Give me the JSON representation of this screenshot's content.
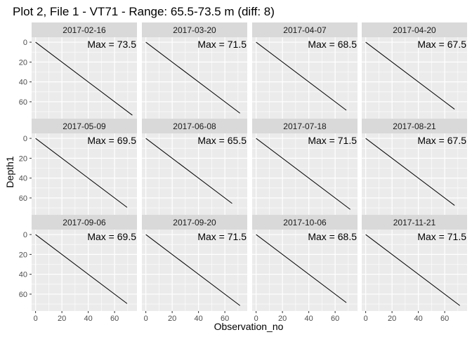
{
  "chart_data": {
    "type": "line",
    "title": "Plot 2, File 1 - VT71 - Range: 65.5-73.5 m (diff: 8)",
    "xlabel": "Observation_no",
    "ylabel": "Depth1",
    "xlim": [
      -3,
      77
    ],
    "ylim": [
      -5,
      77
    ],
    "y_reversed": true,
    "x_ticks": [
      0,
      20,
      40,
      60
    ],
    "y_ticks": [
      0,
      20,
      40,
      60
    ],
    "grid": true,
    "annotation_prefix": "Max = ",
    "facets": [
      {
        "label": "2017-02-16",
        "max": 73.5
      },
      {
        "label": "2017-03-20",
        "max": 71.5
      },
      {
        "label": "2017-04-07",
        "max": 68.5
      },
      {
        "label": "2017-04-20",
        "max": 67.5
      },
      {
        "label": "2017-05-09",
        "max": 69.5
      },
      {
        "label": "2017-06-08",
        "max": 65.5
      },
      {
        "label": "2017-07-18",
        "max": 71.5
      },
      {
        "label": "2017-08-21",
        "max": 67.5
      },
      {
        "label": "2017-09-06",
        "max": 69.5
      },
      {
        "label": "2017-09-20",
        "max": 71.5
      },
      {
        "label": "2017-10-06",
        "max": 68.5
      },
      {
        "label": "2017-11-21",
        "max": 71.5
      }
    ]
  },
  "colors": {
    "panel_bg": "#ebebeb",
    "strip_bg": "#d9d9d9",
    "grid_major": "#ffffff",
    "line": "#000000",
    "text": "#000000",
    "tick_text": "#4d4d4d"
  }
}
